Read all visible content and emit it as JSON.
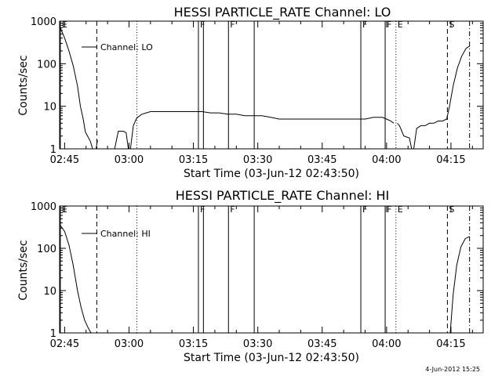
{
  "footer": {
    "timestamp": "4-Jun-2012 15:25"
  },
  "chart_data": [
    {
      "type": "line",
      "title": "HESSI PARTICLE_RATE Channel: LO",
      "xlabel": "Start Time (03-Jun-12 02:43:50)",
      "ylabel": "Counts/sec",
      "yscale": "log",
      "ylim": [
        1,
        1000
      ],
      "xlim_minutes": [
        "02:43:50",
        "04:22:30"
      ],
      "x_tick_labels": [
        "02:45",
        "03:00",
        "03:15",
        "03:30",
        "03:45",
        "04:00",
        "04:15"
      ],
      "y_tick_labels": [
        "1",
        "10",
        "100",
        "1000"
      ],
      "legend": {
        "label": "Channel: LO",
        "placement": "top-left"
      },
      "markers": [
        {
          "time": "02:44:00",
          "style": "solid",
          "label": "E"
        },
        {
          "time": "02:52:30",
          "style": "dashed",
          "label": ""
        },
        {
          "time": "03:01:50",
          "style": "dotted",
          "label": ""
        },
        {
          "time": "03:16:10",
          "style": "solid",
          "label": "F"
        },
        {
          "time": "03:17:20",
          "style": "solid",
          "label": ""
        },
        {
          "time": "03:23:10",
          "style": "solid",
          "label": "F"
        },
        {
          "time": "03:29:10",
          "style": "solid",
          "label": ""
        },
        {
          "time": "03:54:00",
          "style": "solid",
          "label": "F"
        },
        {
          "time": "03:59:40",
          "style": "solid",
          "label": "F"
        },
        {
          "time": "04:02:10",
          "style": "dotted",
          "label": "E"
        },
        {
          "time": "04:14:10",
          "style": "dashed",
          "label": "S"
        },
        {
          "time": "04:19:20",
          "style": "dashdot",
          "label": ""
        }
      ],
      "series": [
        {
          "name": "Channel: LO",
          "segments": [
            {
              "x": [
                "02:44:00",
                "02:45:00",
                "02:46:00",
                "02:47:00",
                "02:48:00",
                "02:48:40",
                "02:49:20",
                "02:49:50",
                "02:50:20",
                "02:51:00",
                "02:51:30",
                "02:52:00"
              ],
              "y": [
                700,
                400,
                200,
                90,
                30,
                10,
                5,
                2.5,
                2,
                1.5,
                1,
                1
              ]
            },
            {
              "x": [
                "02:52:20",
                "02:52:40"
              ],
              "y": [
                1,
                1.6
              ]
            },
            {
              "x": [
                "02:56:40",
                "02:57:30",
                "02:58:40",
                "02:59:20",
                "02:59:50"
              ],
              "y": [
                1,
                2.6,
                2.6,
                2.4,
                1
              ]
            },
            {
              "x": [
                "03:00:20",
                "03:01:00",
                "03:01:40",
                "03:02:00",
                "03:03:00",
                "03:04:00",
                "03:05:00",
                "03:07:00",
                "03:09:00",
                "03:11:00",
                "03:13:00",
                "03:15:00",
                "03:17:00",
                "03:19:00",
                "03:21:00",
                "03:23:00",
                "03:25:00",
                "03:27:00",
                "03:29:00",
                "03:31:00",
                "03:33:00",
                "03:35:00",
                "03:37:00",
                "03:39:00",
                "03:41:00",
                "03:43:00",
                "03:45:00",
                "03:47:00",
                "03:49:00",
                "03:51:00",
                "03:53:00",
                "03:55:00",
                "03:57:00",
                "03:59:00",
                "04:00:00",
                "04:01:00",
                "04:01:40"
              ],
              "y": [
                1,
                3.5,
                5,
                5.5,
                6.5,
                7,
                7.5,
                7.5,
                7.5,
                7.5,
                7.5,
                7.5,
                7.5,
                7,
                7,
                6.5,
                6.5,
                6,
                6,
                6,
                5.5,
                5,
                5,
                5,
                5,
                5,
                5,
                5,
                5,
                5,
                5,
                5,
                5.5,
                5.5,
                5,
                4.5,
                4
              ]
            },
            {
              "x": [
                "04:02:30",
                "04:03:00",
                "04:04:00",
                "04:05:20",
                "04:05:50"
              ],
              "y": [
                4,
                3.5,
                2,
                1.8,
                1
              ]
            },
            {
              "x": [
                "04:06:20",
                "04:07:00",
                "04:08:00",
                "04:09:00",
                "04:10:00",
                "04:11:00",
                "04:12:00",
                "04:13:00",
                "04:14:00",
                "04:14:40",
                "04:15:30",
                "04:16:30",
                "04:17:30",
                "04:18:30",
                "04:19:20"
              ],
              "y": [
                1,
                3,
                3.5,
                3.5,
                4,
                4,
                4.5,
                4.5,
                5,
                10,
                30,
                80,
                150,
                230,
                260
              ]
            }
          ]
        }
      ]
    },
    {
      "type": "line",
      "title": "HESSI PARTICLE_RATE Channel: HI",
      "xlabel": "Start Time (03-Jun-12 02:43:50)",
      "ylabel": "Counts/sec",
      "yscale": "log",
      "ylim": [
        1,
        1000
      ],
      "xlim_minutes": [
        "02:43:50",
        "04:22:30"
      ],
      "x_tick_labels": [
        "02:45",
        "03:00",
        "03:15",
        "03:30",
        "03:45",
        "04:00",
        "04:15"
      ],
      "y_tick_labels": [
        "1",
        "10",
        "100",
        "1000"
      ],
      "legend": {
        "label": "Channel: HI",
        "placement": "top-left"
      },
      "markers": [
        {
          "time": "02:44:00",
          "style": "solid",
          "label": "E"
        },
        {
          "time": "02:52:30",
          "style": "dashed",
          "label": ""
        },
        {
          "time": "03:01:50",
          "style": "dotted",
          "label": ""
        },
        {
          "time": "03:16:10",
          "style": "solid",
          "label": "F"
        },
        {
          "time": "03:17:20",
          "style": "solid",
          "label": ""
        },
        {
          "time": "03:23:10",
          "style": "solid",
          "label": "F"
        },
        {
          "time": "03:29:10",
          "style": "solid",
          "label": ""
        },
        {
          "time": "03:54:00",
          "style": "solid",
          "label": "F"
        },
        {
          "time": "03:59:40",
          "style": "solid",
          "label": "F"
        },
        {
          "time": "04:02:10",
          "style": "dotted",
          "label": "E"
        },
        {
          "time": "04:14:10",
          "style": "dashed",
          "label": "S"
        },
        {
          "time": "04:19:20",
          "style": "dashdot",
          "label": ""
        }
      ],
      "series": [
        {
          "name": "Channel: HI",
          "segments": [
            {
              "x": [
                "02:44:00",
                "02:45:00",
                "02:46:00",
                "02:47:00",
                "02:48:00",
                "02:48:50",
                "02:49:40",
                "02:50:30",
                "02:51:10"
              ],
              "y": [
                350,
                250,
                120,
                40,
                10,
                4,
                2,
                1.3,
                1
              ]
            },
            {
              "x": [
                "04:14:50",
                "04:15:30",
                "04:16:20",
                "04:17:20",
                "04:18:20",
                "04:19:20"
              ],
              "y": [
                1,
                8,
                40,
                110,
                170,
                190
              ]
            }
          ]
        }
      ]
    }
  ]
}
